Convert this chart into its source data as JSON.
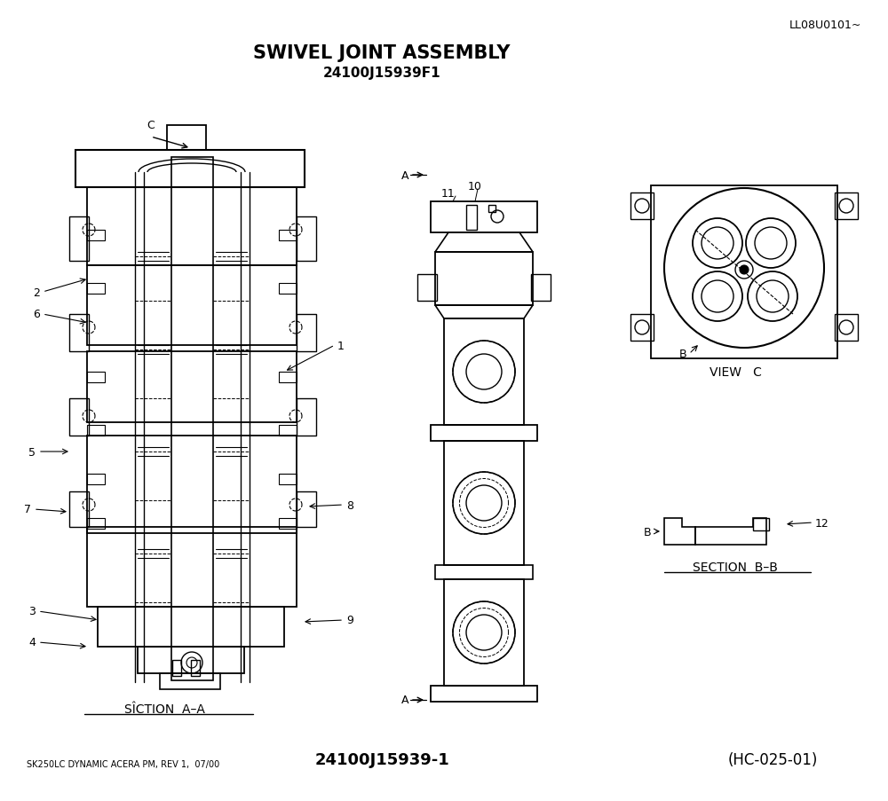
{
  "title_line1": "SWIVEL JOINT ASSEMBLY",
  "title_line2": "24100J15939F1",
  "ref_top_right": "LL08U0101~",
  "bottom_left": "SK250LC DYNAMIC ACERA PM, REV 1,  07/00",
  "bottom_center": "24100J15939-1",
  "bottom_right": "(HC-025-01)",
  "section_aa_label": "SÎCTION  A–A",
  "section_bb_label": "SECTION  B–B",
  "view_c_label": "VIEW   C",
  "bg_color": "#ffffff",
  "line_color": "#000000",
  "fig_width": 10.0,
  "fig_height": 9.04
}
